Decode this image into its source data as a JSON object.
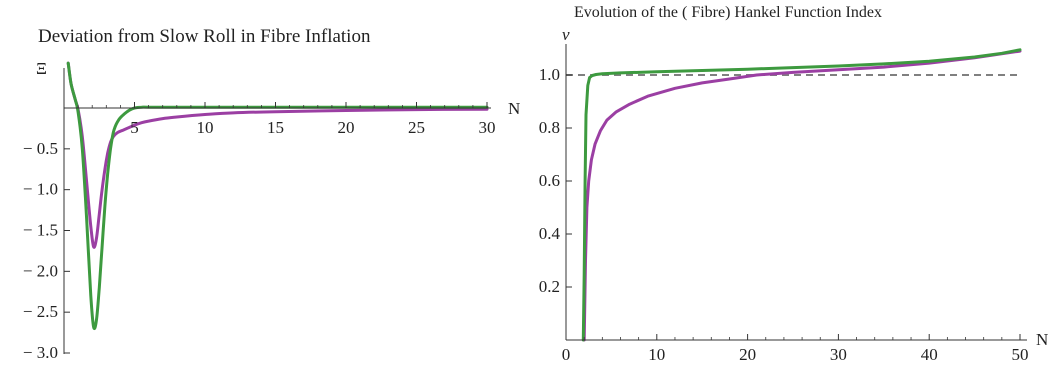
{
  "chart_data": [
    {
      "type": "line",
      "title": "Deviation from Slow Roll in Fibre Inflation",
      "xlabel": "N",
      "ylabel": "Ξ",
      "xlim": [
        0,
        30
      ],
      "ylim": [
        -3.0,
        0.6
      ],
      "x_ticks": [
        5,
        10,
        15,
        20,
        25,
        30
      ],
      "x_tick_labels": [
        "5",
        "10",
        "15",
        "20",
        "25",
        "30"
      ],
      "y_ticks": [
        -0.5,
        -1.0,
        -1.5,
        -2.0,
        -2.5,
        -3.0
      ],
      "y_tick_labels": [
        "− 0.5",
        "− 1.0",
        "− 1.5",
        "− 2.0",
        "− 2.5",
        "− 3.0"
      ],
      "grid": false,
      "colors": {
        "purple": "#9b3fa3",
        "green": "#3d9a3f"
      },
      "series": [
        {
          "color": "#9b3fa3",
          "x": [
            0.3,
            0.5,
            0.8,
            1.0,
            1.3,
            1.6,
            1.9,
            2.1,
            2.3,
            2.5,
            2.7,
            2.9,
            3.1,
            3.3,
            3.5,
            3.8,
            4.2,
            4.6,
            5.0,
            5.5,
            6.0,
            7.0,
            8.0,
            10.0,
            12.0,
            15.0,
            20.0,
            25.0,
            30.0
          ],
          "y": [
            0.55,
            0.3,
            0.1,
            -0.02,
            -0.35,
            -0.9,
            -1.45,
            -1.7,
            -1.6,
            -1.3,
            -1.0,
            -0.75,
            -0.55,
            -0.42,
            -0.35,
            -0.3,
            -0.27,
            -0.24,
            -0.21,
            -0.18,
            -0.16,
            -0.13,
            -0.11,
            -0.08,
            -0.06,
            -0.045,
            -0.03,
            -0.02,
            -0.015
          ]
        },
        {
          "color": "#3d9a3f",
          "x": [
            0.3,
            0.5,
            0.8,
            1.0,
            1.3,
            1.6,
            1.9,
            2.1,
            2.3,
            2.5,
            2.7,
            2.9,
            3.1,
            3.3,
            3.5,
            3.7,
            3.9,
            4.1,
            4.3,
            4.6,
            5.0,
            5.5,
            6.0,
            8.0,
            10.0,
            15.0,
            20.0,
            25.0,
            30.0
          ],
          "y": [
            0.55,
            0.3,
            0.1,
            -0.05,
            -0.5,
            -1.35,
            -2.3,
            -2.68,
            -2.6,
            -2.2,
            -1.7,
            -1.2,
            -0.8,
            -0.5,
            -0.3,
            -0.2,
            -0.14,
            -0.1,
            -0.07,
            -0.03,
            0.0,
            0.01,
            0.01,
            0.01,
            0.01,
            0.01,
            0.01,
            0.01,
            0.01
          ]
        }
      ]
    },
    {
      "type": "line",
      "title": "Evolution of the ( Fibre) Hankel Function Index",
      "xlabel": "N",
      "ylabel": "ν",
      "xlim": [
        0,
        50
      ],
      "ylim": [
        0,
        1.1
      ],
      "x_ticks": [
        0,
        10,
        20,
        30,
        40,
        50
      ],
      "x_tick_labels": [
        "0",
        "10",
        "20",
        "30",
        "40",
        "50"
      ],
      "y_ticks": [
        0.2,
        0.4,
        0.6,
        0.8,
        1.0
      ],
      "y_tick_labels": [
        "0.2",
        "0.4",
        "0.6",
        "0.8",
        "1.0"
      ],
      "reference_line": {
        "y": 1.0,
        "style": "dashed",
        "color": "#808080"
      },
      "grid": false,
      "series": [
        {
          "color": "#9b3fa3",
          "x": [
            2.0,
            2.15,
            2.3,
            2.5,
            2.8,
            3.2,
            3.8,
            4.5,
            5.5,
            7.0,
            9.0,
            12.0,
            15.0,
            18.0,
            21.0,
            25.0,
            30.0,
            35.0,
            40.0,
            45.0,
            50.0
          ],
          "y": [
            0.0,
            0.3,
            0.5,
            0.6,
            0.68,
            0.74,
            0.79,
            0.83,
            0.86,
            0.89,
            0.92,
            0.95,
            0.97,
            0.985,
            1.0,
            1.01,
            1.02,
            1.03,
            1.045,
            1.065,
            1.09
          ]
        },
        {
          "color": "#3d9a3f",
          "x": [
            1.9,
            2.0,
            2.1,
            2.2,
            2.4,
            2.6,
            2.9,
            3.3,
            4.0,
            6.0,
            10.0,
            15.0,
            20.0,
            25.0,
            30.0,
            35.0,
            40.0,
            45.0,
            48.0,
            50.0
          ],
          "y": [
            0.0,
            0.25,
            0.6,
            0.85,
            0.96,
            0.99,
            0.998,
            1.002,
            1.005,
            1.008,
            1.012,
            1.017,
            1.022,
            1.028,
            1.034,
            1.042,
            1.052,
            1.068,
            1.082,
            1.095
          ]
        }
      ]
    }
  ]
}
